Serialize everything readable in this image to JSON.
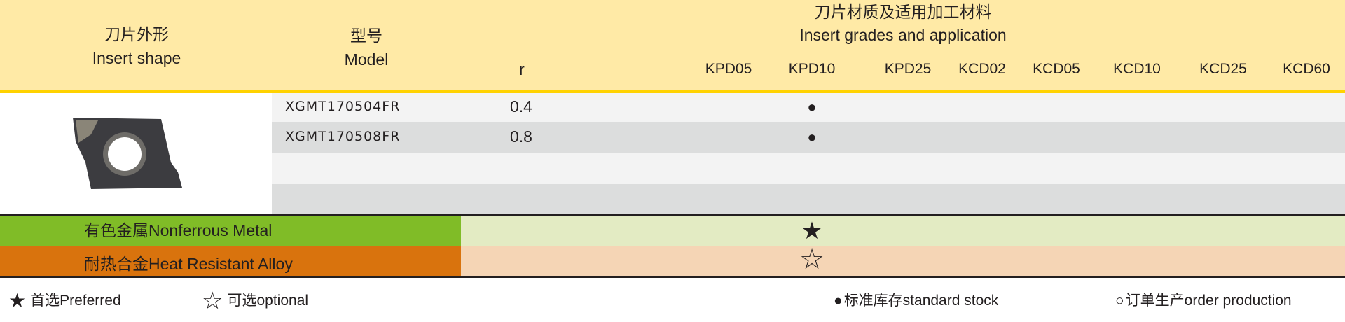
{
  "header": {
    "shape_cn": "刀片外形",
    "shape_en": "Insert shape",
    "model_cn": "型号",
    "model_en": "Model",
    "r_label": "r",
    "grades_cn": "刀片材质及适用加工材料",
    "grades_en": "Insert grades and application",
    "grades": [
      "KPD05",
      "KPD10",
      "KPD25",
      "KCD02",
      "KCD05",
      "KCD10",
      "KCD25",
      "KCD60"
    ]
  },
  "rows": [
    {
      "model": "XGMT170504FR",
      "r": "0.4",
      "stock_grade": "KPD10",
      "mark": "●"
    },
    {
      "model": "XGMT170508FR",
      "r": "0.8",
      "stock_grade": "KPD10",
      "mark": "●"
    }
  ],
  "applications": [
    {
      "label": "有色金属Nonferrous Metal",
      "grade": "KPD10",
      "mark": "★",
      "color": "#80bc27",
      "light": "#e3ebc3"
    },
    {
      "label": "耐热合金Heat Resistant Alloy",
      "grade": "KPD10",
      "mark": "☆",
      "color": "#d9730d",
      "light": "#f5d5b5"
    }
  ],
  "legend": {
    "preferred_icon": "★",
    "preferred": "首选Preferred",
    "optional_icon": "☆",
    "optional": "可选optional",
    "stock_icon": "●",
    "stock": "标准库存standard stock",
    "order_icon": "○",
    "order": "订单生产order production"
  }
}
